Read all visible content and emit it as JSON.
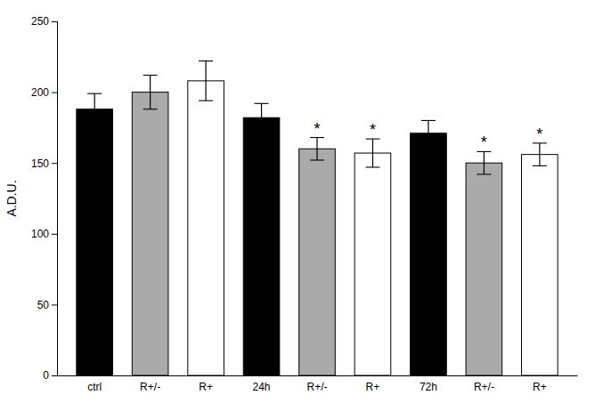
{
  "chart_data": {
    "type": "bar",
    "categories": [
      "ctrl",
      "R+/-",
      "R+",
      "24h",
      "R+/-",
      "R+",
      "72h",
      "R+/-",
      "R+"
    ],
    "values": [
      188,
      200,
      208,
      182,
      160,
      157,
      171,
      150,
      156
    ],
    "errors": [
      11,
      12,
      14,
      10,
      8,
      10,
      9,
      8,
      8
    ],
    "colors": [
      "#000000",
      "#aaaaaa",
      "#ffffff",
      "#000000",
      "#aaaaaa",
      "#ffffff",
      "#000000",
      "#aaaaaa",
      "#ffffff"
    ],
    "annotations": [
      null,
      null,
      null,
      null,
      "*",
      "*",
      null,
      "*",
      "*"
    ],
    "y_label": "A.D.U.",
    "ylim": [
      0,
      250
    ],
    "yticks": [
      0,
      50,
      100,
      150,
      200,
      250
    ],
    "grid": false
  }
}
